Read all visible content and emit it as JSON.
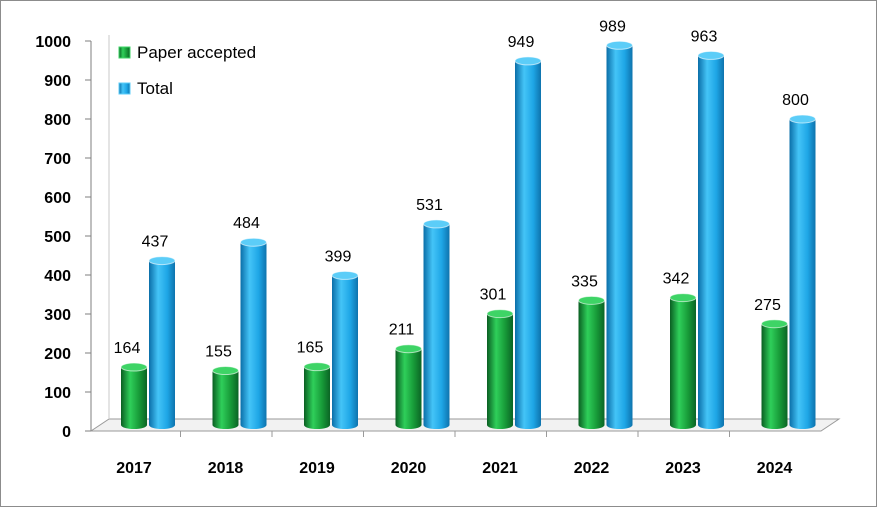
{
  "chart_data": {
    "type": "bar",
    "title": "",
    "xlabel": "",
    "ylabel": "",
    "categories": [
      "2017",
      "2018",
      "2019",
      "2020",
      "2021",
      "2022",
      "2023",
      "2024"
    ],
    "series": [
      {
        "name": "Paper accepted",
        "values": [
          164,
          155,
          165,
          211,
          301,
          335,
          342,
          275
        ],
        "color": "#1a9b3a"
      },
      {
        "name": "Total",
        "values": [
          437,
          484,
          399,
          531,
          949,
          989,
          963,
          800
        ],
        "color": "#1ea6e6"
      }
    ],
    "ylim": [
      0,
      1000
    ],
    "yticks": [
      "0",
      "100",
      "200",
      "300",
      "400",
      "500",
      "600",
      "700",
      "800",
      "900",
      "1000"
    ],
    "grid": false,
    "legend": "top-left",
    "style": "3d-cylinder"
  }
}
